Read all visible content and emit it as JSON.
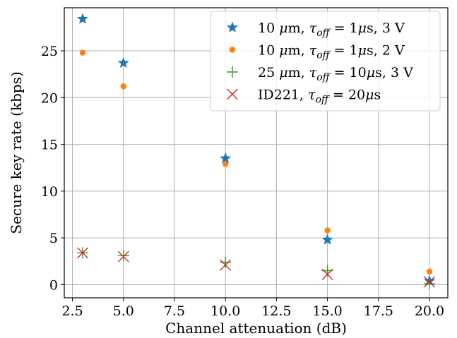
{
  "chart_data": {
    "type": "scatter",
    "xlabel": "Channel attenuation (dB)",
    "ylabel": "Secure key rate (kbps)",
    "xlim": [
      2.1,
      20.9
    ],
    "ylim": [
      -1.4,
      29.6
    ],
    "xticks": [
      2.5,
      5.0,
      7.5,
      10.0,
      12.5,
      15.0,
      17.5,
      20.0
    ],
    "xtick_labels": [
      "2.5",
      "5.0",
      "7.5",
      "10.0",
      "12.5",
      "15.0",
      "17.5",
      "20.0"
    ],
    "yticks": [
      0,
      5,
      10,
      15,
      20,
      25
    ],
    "ytick_labels": [
      "0",
      "5",
      "10",
      "15",
      "20",
      "25"
    ],
    "grid": true,
    "legend_position": "top-right",
    "series": [
      {
        "name": "10 μm, τ_off = 1μs, 3 V",
        "legend_parts": {
          "a": "10 ",
          "mu": "μ",
          "b": "m, ",
          "tau": "τ",
          "sub": "off",
          "c": " = 1",
          "mu2": "μ",
          "d": "s, 3 V"
        },
        "marker": "star",
        "color": "#1f77b4",
        "x": [
          3,
          5,
          10,
          15,
          20
        ],
        "y": [
          28.4,
          23.7,
          13.5,
          4.8,
          0.4
        ]
      },
      {
        "name": "10 μm, τ_off = 1μs, 2 V",
        "legend_parts": {
          "a": "10 ",
          "mu": "μ",
          "b": "m, ",
          "tau": "τ",
          "sub": "off",
          "c": " = 1",
          "mu2": "μ",
          "d": "s, 2 V"
        },
        "marker": "circle",
        "color": "#ff7f0e",
        "x": [
          3,
          5,
          10,
          15,
          20
        ],
        "y": [
          24.8,
          21.2,
          12.9,
          5.8,
          1.4
        ]
      },
      {
        "name": "25 μm, τ_off = 10μs, 3 V",
        "legend_parts": {
          "a": "25 ",
          "mu": "μ",
          "b": "m, ",
          "tau": "τ",
          "sub": "off",
          "c": " = 10",
          "mu2": "μ",
          "d": "s, 3 V"
        },
        "marker": "plus",
        "color": "#2ca02c",
        "x": [
          3,
          5,
          10,
          15,
          20
        ],
        "y": [
          3.4,
          3.1,
          2.4,
          1.5,
          0.1
        ]
      },
      {
        "name": "ID221, τ_off = 20μs",
        "legend_parts": {
          "a": "ID221, ",
          "mu": "",
          "b": "",
          "tau": "τ",
          "sub": "off",
          "c": " = 20",
          "mu2": "μ",
          "d": "s"
        },
        "marker": "x",
        "color": "#d62728",
        "x": [
          3,
          5,
          10,
          15,
          20
        ],
        "y": [
          3.4,
          3.0,
          2.1,
          1.1,
          0.3
        ]
      }
    ]
  }
}
